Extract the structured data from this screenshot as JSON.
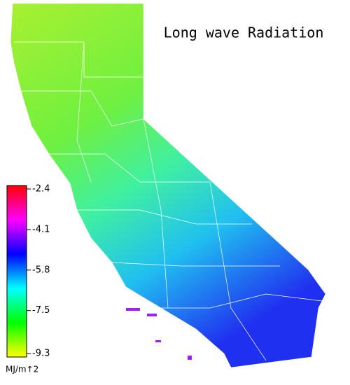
{
  "title": "Long wave Radiation",
  "colorbar": {
    "lim": [
      -9.3,
      -2.4
    ],
    "ticks": [
      -2.4,
      -4.1,
      -5.8,
      -7.5,
      -9.3
    ],
    "unit": "MJ/m↑2",
    "colors": [
      "#ffff00",
      "#00ff00",
      "#00ffff",
      "#0000ff",
      "#ff00ff",
      "#ff0000"
    ]
  }
}
